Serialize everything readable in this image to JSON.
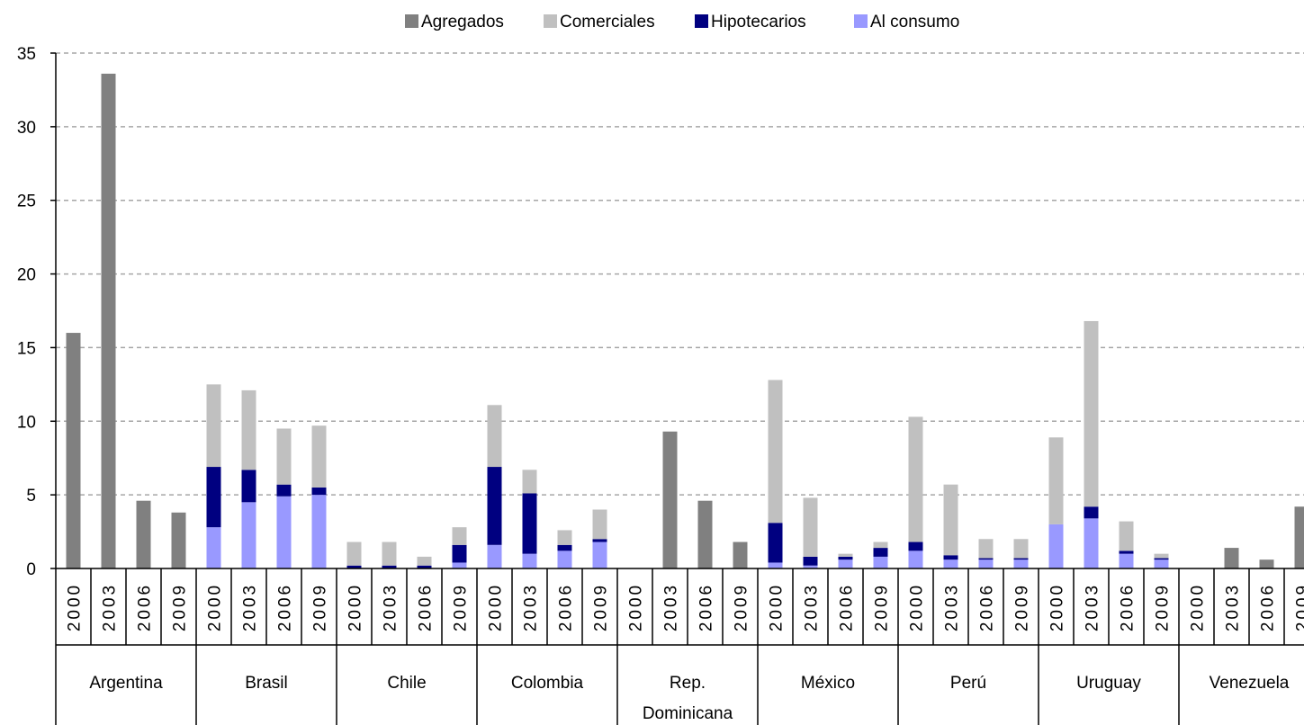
{
  "chart_data": {
    "type": "bar",
    "stacked": true,
    "title": "",
    "xlabel": "",
    "ylabel": "",
    "ylim": [
      0,
      35
    ],
    "yticks": [
      0,
      5,
      10,
      15,
      20,
      25,
      30,
      35
    ],
    "grid": true,
    "legend_position": "top",
    "years": [
      "2000",
      "2003",
      "2006",
      "2009"
    ],
    "groups": [
      "Argentina",
      "Brasil",
      "Chile",
      "Colombia",
      "Rep. Dominicana",
      "México",
      "Perú",
      "Uruguay",
      "Venezuela"
    ],
    "series": [
      {
        "name": "Agregados",
        "color": "#808080",
        "values": [
          16.0,
          33.6,
          4.6,
          3.8,
          null,
          null,
          null,
          null,
          null,
          null,
          null,
          null,
          null,
          null,
          null,
          null,
          0,
          9.3,
          4.6,
          1.8,
          null,
          null,
          null,
          null,
          null,
          null,
          null,
          null,
          null,
          null,
          null,
          null,
          0,
          1.4,
          0.6,
          4.2
        ]
      },
      {
        "name": "Comerciales",
        "color": "#c0c0c0",
        "values": [
          null,
          null,
          null,
          null,
          5.6,
          5.4,
          3.8,
          4.2,
          1.6,
          1.6,
          0.6,
          1.2,
          4.2,
          1.6,
          1.0,
          2.0,
          null,
          null,
          null,
          null,
          9.7,
          4.0,
          0.2,
          0.4,
          8.5,
          4.8,
          1.3,
          1.3,
          5.9,
          12.6,
          2.0,
          0.3
        ]
      },
      {
        "name": "Hipotecarios",
        "color": "#000080",
        "values": [
          null,
          null,
          null,
          null,
          4.1,
          2.2,
          0.8,
          0.5,
          0.2,
          0.2,
          0.2,
          1.2,
          5.3,
          4.1,
          0.4,
          0.2,
          null,
          null,
          null,
          null,
          2.7,
          0.6,
          0.2,
          0.6,
          0.6,
          0.3,
          0.1,
          0.1,
          0.0,
          0.8,
          0.2,
          0.1
        ]
      },
      {
        "name": "Al consumo",
        "color": "#9999ff",
        "values": [
          null,
          null,
          null,
          null,
          2.8,
          4.5,
          4.9,
          5.0,
          0.0,
          0.0,
          0.0,
          0.4,
          1.6,
          1.0,
          1.2,
          1.8,
          null,
          null,
          null,
          null,
          0.4,
          0.2,
          0.6,
          0.8,
          1.2,
          0.6,
          0.6,
          0.6,
          3.0,
          3.4,
          1.0,
          0.6
        ]
      }
    ]
  }
}
